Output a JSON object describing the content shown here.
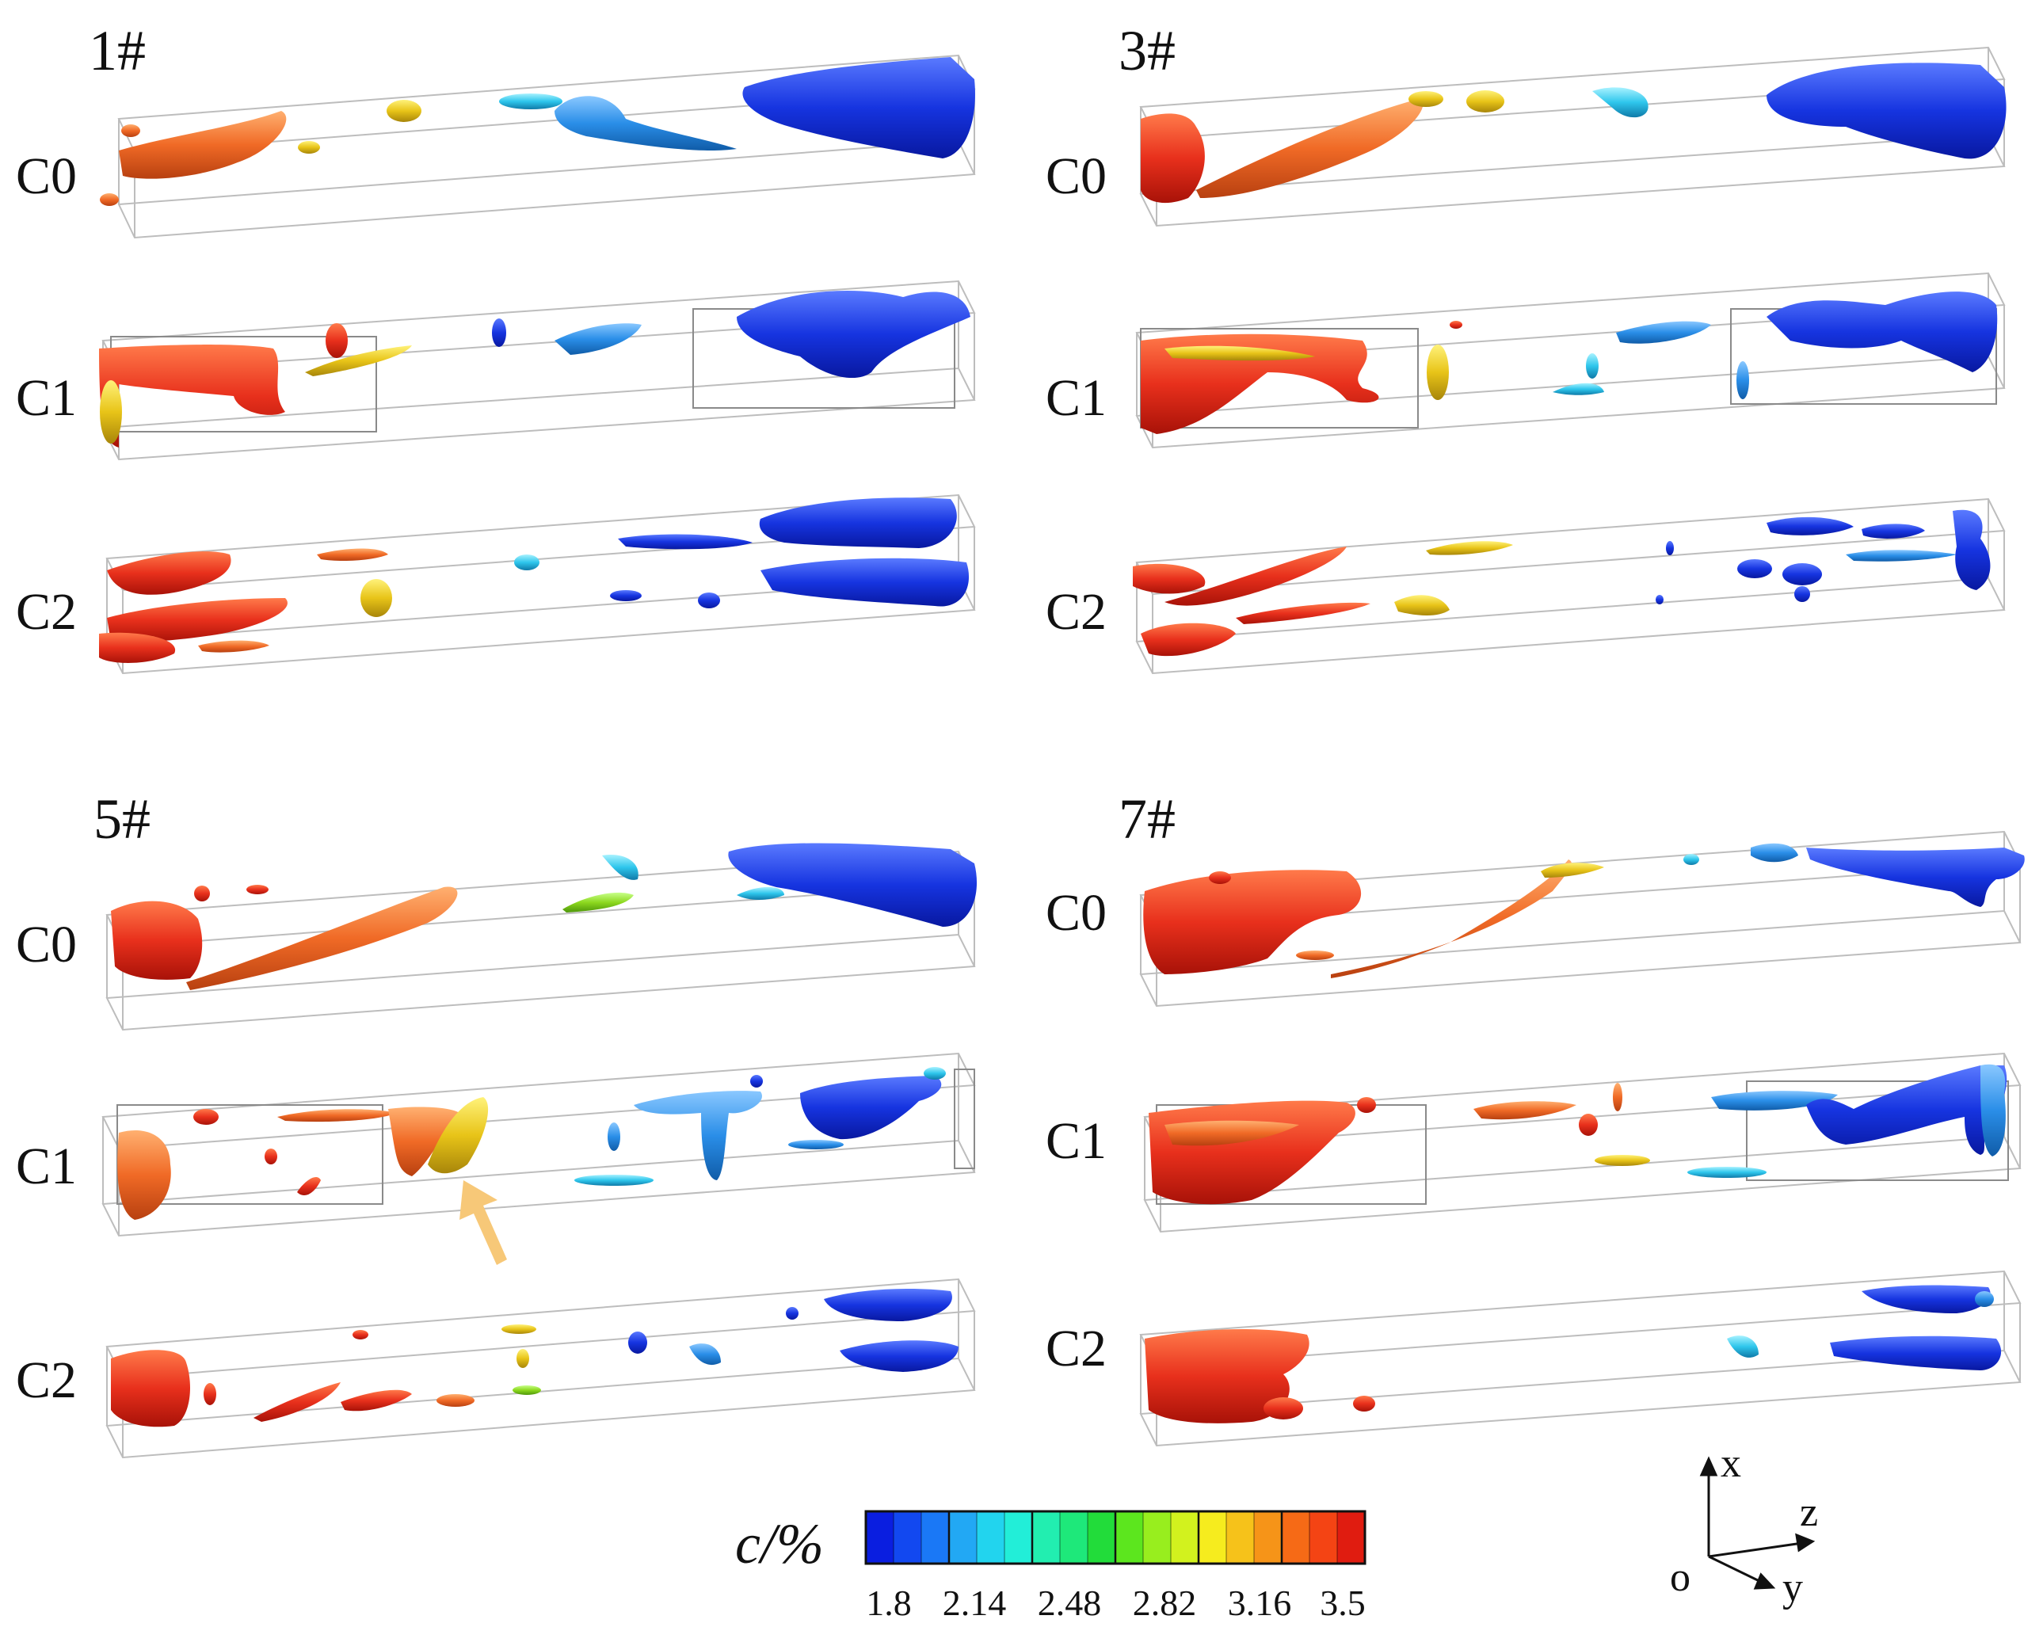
{
  "panels": [
    {
      "id": "1#",
      "rows": [
        "C0",
        "C1",
        "C2"
      ]
    },
    {
      "id": "3#",
      "rows": [
        "C0",
        "C1",
        "C2"
      ]
    },
    {
      "id": "5#",
      "rows": [
        "C0",
        "C1",
        "C2"
      ]
    },
    {
      "id": "7#",
      "rows": [
        "C0",
        "C1",
        "C2"
      ]
    }
  ],
  "colorbar": {
    "label": "c/%",
    "ticks": [
      "1.8",
      "2.14",
      "2.48",
      "2.82",
      "3.16",
      "3.5"
    ],
    "min": 1.8,
    "max": 3.5,
    "colors": [
      "#0a1ee0",
      "#1248f0",
      "#1a78f6",
      "#22a8f4",
      "#22d4ee",
      "#22eed8",
      "#22eeb0",
      "#1ee87a",
      "#22dc3a",
      "#5ce61e",
      "#98ee1e",
      "#d2f21e",
      "#f6ec1e",
      "#f6c21a",
      "#f69418",
      "#f66a16",
      "#f44414",
      "#e01c10"
    ]
  },
  "axes": {
    "origin": "o",
    "x": "x",
    "y": "y",
    "z": "z"
  },
  "colors": {
    "arrow": "#f7c878",
    "box": "#b8b8b8"
  }
}
